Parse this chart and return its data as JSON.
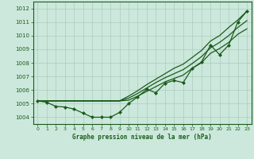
{
  "x": [
    0,
    1,
    2,
    3,
    4,
    5,
    6,
    7,
    8,
    9,
    10,
    11,
    12,
    13,
    14,
    15,
    16,
    17,
    18,
    19,
    20,
    21,
    22,
    23
  ],
  "measured": [
    1005.2,
    1005.1,
    1004.8,
    1004.75,
    1004.6,
    1004.3,
    1004.0,
    1004.0,
    1004.0,
    1004.35,
    1005.0,
    1005.5,
    1006.05,
    1005.8,
    1006.5,
    1006.7,
    1006.55,
    1007.6,
    1008.05,
    1009.3,
    1008.6,
    1009.3,
    1011.0,
    1011.8
  ],
  "trend1": [
    1005.2,
    1005.2,
    1005.2,
    1005.2,
    1005.2,
    1005.2,
    1005.2,
    1005.2,
    1005.2,
    1005.2,
    1005.55,
    1005.95,
    1006.4,
    1006.8,
    1007.2,
    1007.6,
    1007.9,
    1008.4,
    1008.9,
    1009.6,
    1010.0,
    1010.6,
    1011.15,
    1011.8
  ],
  "trend2": [
    1005.2,
    1005.2,
    1005.2,
    1005.2,
    1005.2,
    1005.2,
    1005.2,
    1005.2,
    1005.2,
    1005.2,
    1005.4,
    1005.75,
    1006.15,
    1006.55,
    1006.9,
    1007.2,
    1007.5,
    1007.95,
    1008.45,
    1009.1,
    1009.5,
    1010.0,
    1010.6,
    1011.1
  ],
  "trend3": [
    1005.2,
    1005.2,
    1005.2,
    1005.2,
    1005.2,
    1005.2,
    1005.2,
    1005.2,
    1005.2,
    1005.2,
    1005.25,
    1005.55,
    1005.9,
    1006.25,
    1006.6,
    1006.85,
    1007.1,
    1007.6,
    1008.0,
    1008.7,
    1009.05,
    1009.5,
    1010.1,
    1010.5
  ],
  "bg_color": "#cce8dc",
  "grid_color": "#aaccbc",
  "line_color": "#1a5c1a",
  "xlabel": "Graphe pression niveau de la mer (hPa)",
  "ylim": [
    1003.5,
    1012.5
  ],
  "xlim": [
    -0.5,
    23.5
  ],
  "yticks": [
    1004,
    1005,
    1006,
    1007,
    1008,
    1009,
    1010,
    1011,
    1012
  ],
  "xticks": [
    0,
    1,
    2,
    3,
    4,
    5,
    6,
    7,
    8,
    9,
    10,
    11,
    12,
    13,
    14,
    15,
    16,
    17,
    18,
    19,
    20,
    21,
    22,
    23
  ],
  "ytick_labels": [
    "1004",
    "1005",
    "1006",
    "1007",
    "1008",
    "1009",
    "1010",
    "1011",
    "1012"
  ],
  "xtick_labels": [
    "0",
    "1",
    "2",
    "3",
    "4",
    "5",
    "6",
    "7",
    "8",
    "9",
    "10",
    "11",
    "12",
    "13",
    "14",
    "15",
    "16",
    "17",
    "18",
    "19",
    "20",
    "21",
    "22",
    "23"
  ]
}
